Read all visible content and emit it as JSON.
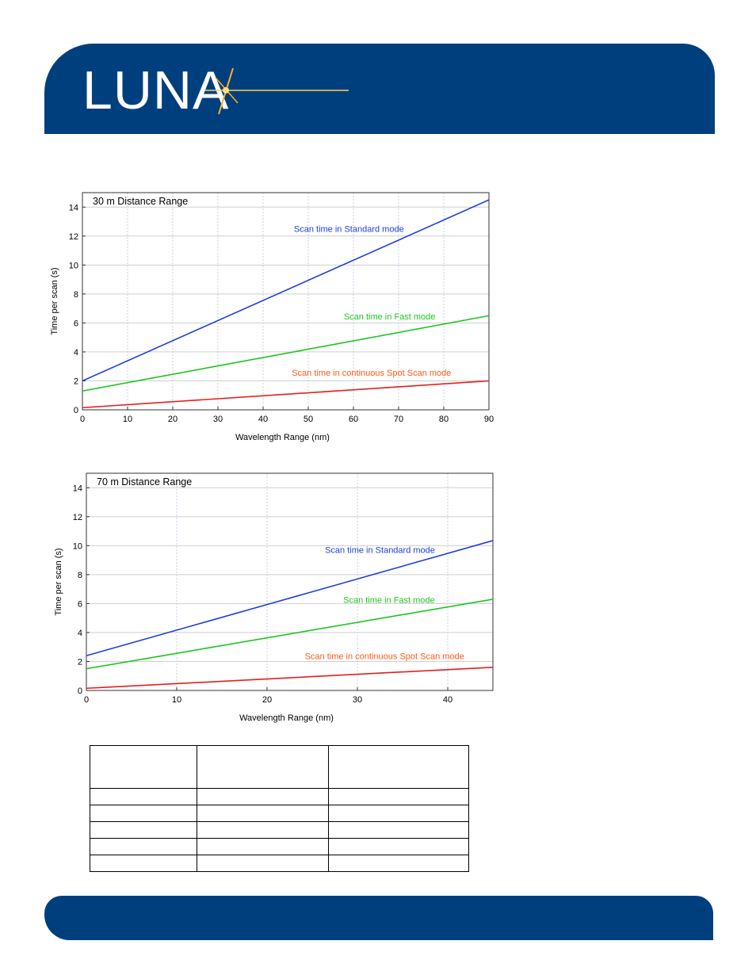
{
  "brand": {
    "logo_text": "LUNA",
    "band_color": "#003f7d"
  },
  "chart_data": [
    {
      "type": "line",
      "title": "30 m Distance Range",
      "xlabel": "Wavelength Range (nm)",
      "ylabel": "Time per scan (s)",
      "xlim": [
        0,
        90
      ],
      "ylim": [
        0,
        15
      ],
      "xticks": [
        0,
        10,
        20,
        30,
        40,
        50,
        60,
        70,
        80,
        90
      ],
      "yticks": [
        0,
        2,
        4,
        6,
        8,
        10,
        12,
        14
      ],
      "grid": true,
      "series": [
        {
          "name": "Scan time in Standard mode",
          "color": "#1f3fdd",
          "x": [
            0,
            90
          ],
          "y": [
            2.0,
            14.5
          ]
        },
        {
          "name": "Scan time in Fast mode",
          "color": "#1fc41f",
          "x": [
            0,
            90
          ],
          "y": [
            1.3,
            6.5
          ]
        },
        {
          "name": "Scan time in continuous Spot Scan mode",
          "color": "#e61e1e",
          "x": [
            0,
            90
          ],
          "y": [
            0.15,
            2.0
          ]
        }
      ],
      "annotations": [
        {
          "series": 0,
          "text_color": "#1f3fdd",
          "x": 59,
          "y": 12.3
        },
        {
          "series": 1,
          "text_color": "#1fc41f",
          "x": 68,
          "y": 6.25
        },
        {
          "series": 2,
          "text_color": "#ff5a14",
          "x": 64,
          "y": 2.35
        }
      ]
    },
    {
      "type": "line",
      "title": "70 m Distance Range",
      "xlabel": "Wavelength Range (nm)",
      "ylabel": "Time per scan (s)",
      "xlim": [
        0,
        45
      ],
      "ylim": [
        0,
        15
      ],
      "xticks": [
        0,
        10,
        20,
        30,
        40
      ],
      "yticks": [
        0,
        2,
        4,
        6,
        8,
        10,
        12,
        14
      ],
      "grid": true,
      "series": [
        {
          "name": "Scan time in Standard mode",
          "color": "#1f3fdd",
          "x": [
            0,
            45
          ],
          "y": [
            2.4,
            10.35
          ]
        },
        {
          "name": "Scan time in Fast mode",
          "color": "#1fc41f",
          "x": [
            0,
            45
          ],
          "y": [
            1.5,
            6.3
          ]
        },
        {
          "name": "Scan time in continuous Spot Scan mode",
          "color": "#e61e1e",
          "x": [
            0,
            45
          ],
          "y": [
            0.15,
            1.6
          ]
        }
      ],
      "annotations": [
        {
          "series": 0,
          "text_color": "#1f3fdd",
          "x": 32.5,
          "y": 9.5
        },
        {
          "series": 1,
          "text_color": "#1fc41f",
          "x": 33.5,
          "y": 6.05
        },
        {
          "series": 2,
          "text_color": "#ff5a14",
          "x": 33,
          "y": 2.15
        }
      ]
    }
  ],
  "table": {
    "columns": 3,
    "rows": [
      [
        "",
        "",
        ""
      ],
      [
        "",
        "",
        ""
      ],
      [
        "",
        "",
        ""
      ],
      [
        "",
        "",
        ""
      ],
      [
        "",
        "",
        ""
      ],
      [
        "",
        "",
        ""
      ]
    ]
  }
}
